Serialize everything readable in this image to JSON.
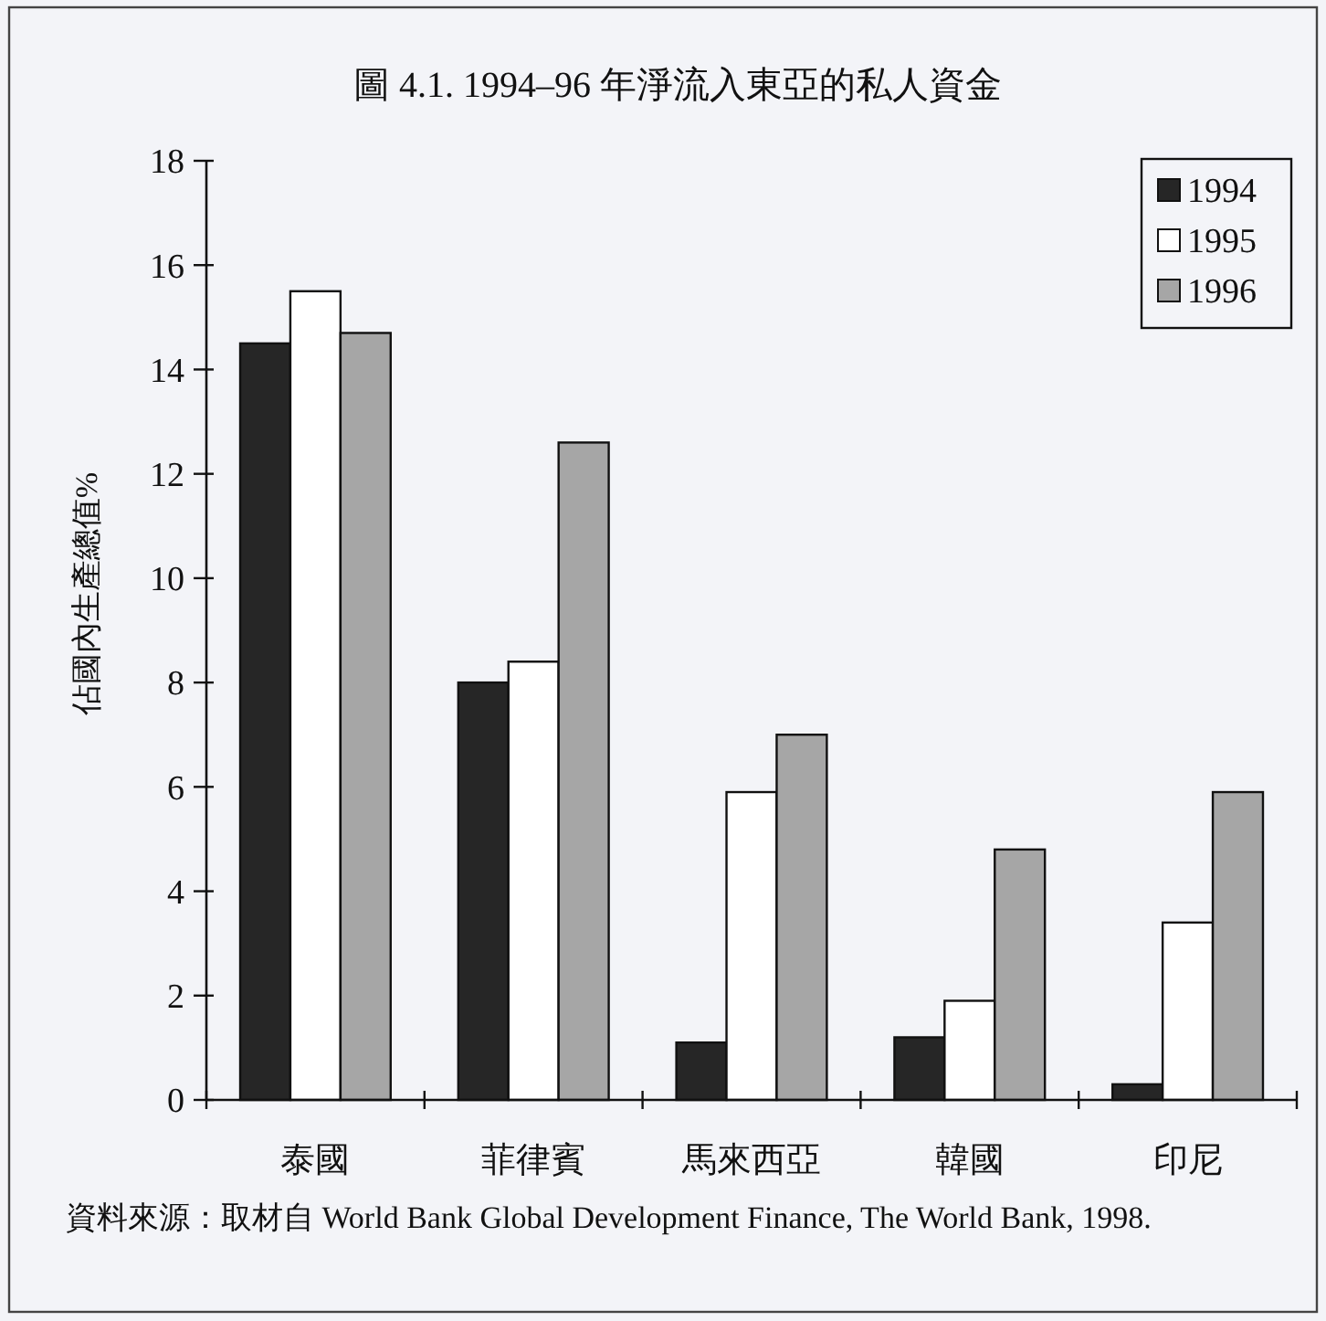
{
  "chart_data": {
    "type": "bar",
    "title": "圖 4.1. 1994–96 年淨流入東亞的私人資金",
    "ylabel": "佔國內生產總值%",
    "categories": [
      "泰國",
      "菲律賓",
      "馬來西亞",
      "韓國",
      "印尼"
    ],
    "series": [
      {
        "name": "1994",
        "color": "#262626",
        "values": [
          14.5,
          8.0,
          1.1,
          1.2,
          0.3
        ]
      },
      {
        "name": "1995",
        "color": "#ffffff",
        "values": [
          15.5,
          8.4,
          5.9,
          1.9,
          3.4
        ]
      },
      {
        "name": "1996",
        "color": "#a6a6a6",
        "values": [
          14.7,
          12.6,
          7.0,
          4.8,
          5.9
        ]
      }
    ],
    "ylim": [
      0,
      18
    ],
    "yticks": [
      0,
      2,
      4,
      6,
      8,
      10,
      12,
      14,
      16,
      18
    ],
    "legend": "top right",
    "annotations": [
      "資料來源：取材自 World Bank Global Development Finance, The World Bank, 1998."
    ]
  }
}
